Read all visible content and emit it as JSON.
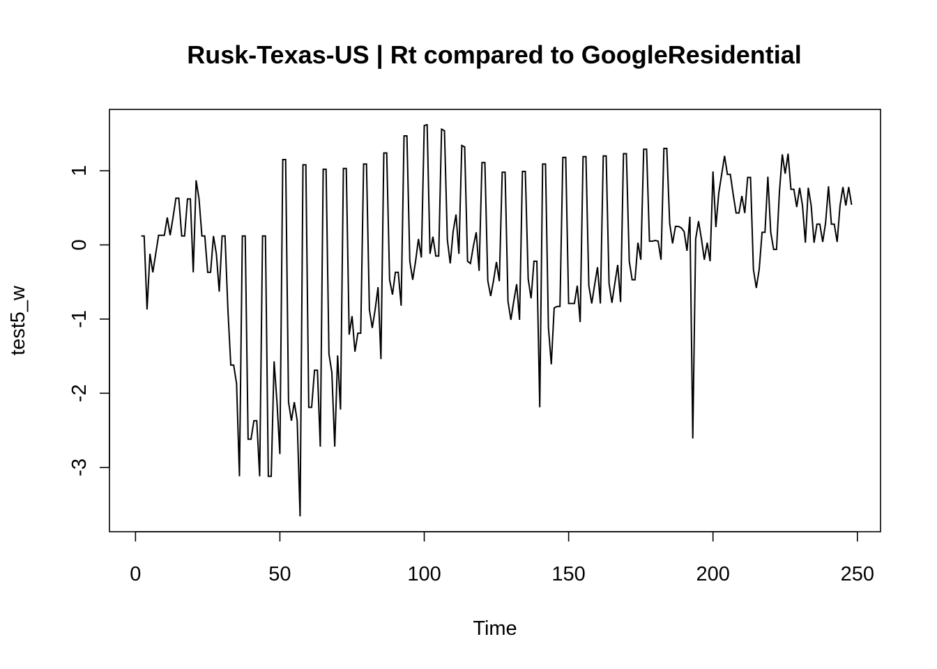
{
  "chart_data": {
    "type": "line",
    "title": "Rusk-Texas-US | Rt compared to GoogleResidential",
    "xlabel": "Time",
    "ylabel": "test5_w",
    "xlim": [
      1,
      248
    ],
    "ylim": [
      -3.66,
      1.62
    ],
    "x_ticks": [
      0,
      50,
      100,
      150,
      200,
      250
    ],
    "y_ticks": [
      -3,
      -2,
      -1,
      0,
      1
    ],
    "x_tick_labels": [
      "0",
      "50",
      "100",
      "150",
      "200",
      "250"
    ],
    "y_tick_labels": [
      "-3",
      "-2",
      "-1",
      "0",
      "1"
    ],
    "grid": false,
    "legend": "none",
    "x_start": 2,
    "series": [
      {
        "color": "#000000",
        "values": [
          0.12,
          0.12,
          -0.87,
          -0.12,
          -0.37,
          -0.12,
          0.13,
          0.13,
          0.13,
          0.37,
          0.13,
          0.37,
          0.63,
          0.63,
          0.12,
          0.12,
          0.62,
          0.62,
          -0.37,
          0.87,
          0.62,
          0.12,
          0.12,
          -0.37,
          -0.37,
          0.12,
          -0.12,
          -0.63,
          0.12,
          0.12,
          -0.87,
          -1.62,
          -1.62,
          -1.87,
          -3.12,
          0.12,
          0.12,
          -2.62,
          -2.62,
          -2.37,
          -2.37,
          -3.12,
          0.12,
          0.12,
          -3.12,
          -3.12,
          -1.57,
          -2.12,
          -2.82,
          1.15,
          1.15,
          -2.12,
          -2.37,
          -2.12,
          -2.37,
          -3.66,
          1.08,
          1.08,
          -2.19,
          -2.19,
          -1.69,
          -1.69,
          -2.72,
          1.02,
          1.02,
          -1.47,
          -1.72,
          -2.72,
          -1.49,
          -2.22,
          1.03,
          1.03,
          -1.21,
          -0.96,
          -1.44,
          -1.19,
          -1.19,
          1.09,
          1.09,
          -0.87,
          -1.12,
          -0.87,
          -0.57,
          -1.54,
          1.24,
          1.24,
          -0.47,
          -0.67,
          -0.37,
          -0.37,
          -0.82,
          1.47,
          1.47,
          -0.22,
          -0.47,
          -0.22,
          0.08,
          -0.17,
          1.61,
          1.62,
          -0.12,
          0.11,
          -0.15,
          -0.15,
          1.56,
          1.54,
          0.07,
          -0.25,
          0.18,
          0.41,
          -0.12,
          1.34,
          1.32,
          -0.22,
          -0.25,
          -0.02,
          0.17,
          -0.35,
          1.11,
          1.11,
          -0.48,
          -0.69,
          -0.48,
          -0.23,
          -0.49,
          0.98,
          0.98,
          -0.76,
          -1.01,
          -0.76,
          -0.53,
          -1.01,
          0.99,
          0.99,
          -0.46,
          -0.72,
          -0.22,
          -0.22,
          -2.19,
          1.09,
          1.09,
          -1.11,
          -1.61,
          -0.85,
          -0.83,
          -0.83,
          1.18,
          1.18,
          -0.79,
          -0.79,
          -0.79,
          -0.55,
          -1.04,
          1.19,
          1.19,
          -0.55,
          -0.79,
          -0.54,
          -0.3,
          -0.79,
          1.2,
          1.2,
          -0.52,
          -0.78,
          -0.52,
          -0.27,
          -0.77,
          1.23,
          1.23,
          -0.22,
          -0.47,
          -0.47,
          0.03,
          -0.2,
          1.29,
          1.29,
          0.05,
          0.05,
          0.06,
          0.05,
          -0.2,
          1.3,
          1.3,
          0.29,
          0.02,
          0.25,
          0.25,
          0.23,
          0.18,
          -0.08,
          0.38,
          -2.61,
          0.08,
          0.32,
          0.08,
          -0.2,
          0.03,
          -0.22,
          0.99,
          0.24,
          0.7,
          0.95,
          1.2,
          0.95,
          0.95,
          0.68,
          0.43,
          0.43,
          0.66,
          0.43,
          0.91,
          0.91,
          -0.33,
          -0.58,
          -0.33,
          0.17,
          0.17,
          0.92,
          0.17,
          -0.06,
          -0.06,
          0.71,
          1.22,
          0.96,
          1.23,
          0.75,
          0.75,
          0.51,
          0.77,
          0.53,
          0.03,
          0.77,
          0.53,
          0.03,
          0.28,
          0.28,
          0.04,
          0.3,
          0.79,
          0.28,
          0.28,
          0.04,
          0.53,
          0.78,
          0.53,
          0.78,
          0.54
        ]
      }
    ]
  }
}
